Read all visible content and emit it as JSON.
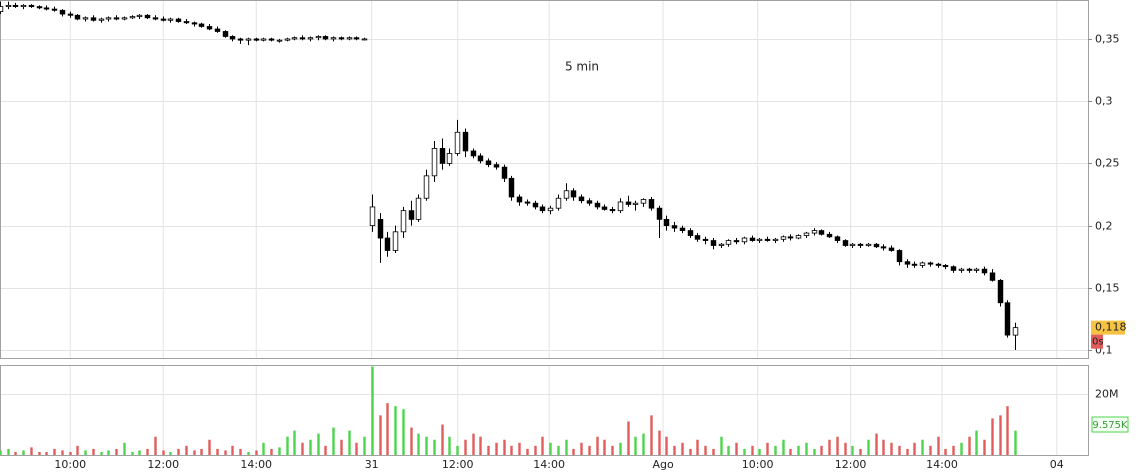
{
  "chart_data": {
    "type": "candlestick",
    "annotation": "5 min",
    "candles": [
      [
        0.372,
        0.38,
        0.37,
        0.376
      ],
      [
        0.376,
        0.38,
        0.374,
        0.377
      ],
      [
        0.377,
        0.379,
        0.375,
        0.376
      ],
      [
        0.376,
        0.378,
        0.374,
        0.377
      ],
      [
        0.377,
        0.378,
        0.375,
        0.376
      ],
      [
        0.376,
        0.377,
        0.374,
        0.375
      ],
      [
        0.375,
        0.377,
        0.373,
        0.374
      ],
      [
        0.374,
        0.376,
        0.372,
        0.373
      ],
      [
        0.373,
        0.374,
        0.368,
        0.37
      ],
      [
        0.37,
        0.372,
        0.367,
        0.369
      ],
      [
        0.369,
        0.37,
        0.365,
        0.366
      ],
      [
        0.366,
        0.368,
        0.364,
        0.367
      ],
      [
        0.367,
        0.369,
        0.364,
        0.365
      ],
      [
        0.365,
        0.367,
        0.363,
        0.366
      ],
      [
        0.366,
        0.368,
        0.364,
        0.367
      ],
      [
        0.367,
        0.369,
        0.365,
        0.366
      ],
      [
        0.366,
        0.368,
        0.365,
        0.367
      ],
      [
        0.367,
        0.369,
        0.366,
        0.368
      ],
      [
        0.368,
        0.37,
        0.366,
        0.369
      ],
      [
        0.369,
        0.37,
        0.366,
        0.367
      ],
      [
        0.367,
        0.369,
        0.365,
        0.366
      ],
      [
        0.366,
        0.368,
        0.364,
        0.365
      ],
      [
        0.365,
        0.367,
        0.363,
        0.366
      ],
      [
        0.366,
        0.367,
        0.363,
        0.364
      ],
      [
        0.364,
        0.366,
        0.362,
        0.363
      ],
      [
        0.363,
        0.364,
        0.36,
        0.362
      ],
      [
        0.362,
        0.363,
        0.359,
        0.36
      ],
      [
        0.36,
        0.362,
        0.357,
        0.358
      ],
      [
        0.358,
        0.36,
        0.355,
        0.356
      ],
      [
        0.356,
        0.357,
        0.351,
        0.352
      ],
      [
        0.352,
        0.353,
        0.348,
        0.35
      ],
      [
        0.35,
        0.351,
        0.346,
        0.349
      ],
      [
        0.349,
        0.351,
        0.345,
        0.35
      ],
      [
        0.35,
        0.351,
        0.348,
        0.349
      ],
      [
        0.349,
        0.351,
        0.348,
        0.35
      ],
      [
        0.35,
        0.351,
        0.348,
        0.349
      ],
      [
        0.349,
        0.35,
        0.347,
        0.349
      ],
      [
        0.349,
        0.351,
        0.348,
        0.35
      ],
      [
        0.35,
        0.352,
        0.349,
        0.351
      ],
      [
        0.351,
        0.353,
        0.349,
        0.35
      ],
      [
        0.35,
        0.352,
        0.348,
        0.351
      ],
      [
        0.351,
        0.353,
        0.349,
        0.352
      ],
      [
        0.352,
        0.353,
        0.349,
        0.35
      ],
      [
        0.35,
        0.352,
        0.348,
        0.351
      ],
      [
        0.351,
        0.352,
        0.349,
        0.35
      ],
      [
        0.35,
        0.352,
        0.349,
        0.351
      ],
      [
        0.351,
        0.352,
        0.349,
        0.35
      ],
      [
        0.35,
        0.351,
        0.349,
        0.35
      ],
      [
        0.2,
        0.225,
        0.195,
        0.215
      ],
      [
        0.205,
        0.21,
        0.17,
        0.19
      ],
      [
        0.19,
        0.195,
        0.175,
        0.18
      ],
      [
        0.18,
        0.2,
        0.178,
        0.195
      ],
      [
        0.195,
        0.215,
        0.19,
        0.212
      ],
      [
        0.212,
        0.22,
        0.2,
        0.205
      ],
      [
        0.205,
        0.225,
        0.203,
        0.222
      ],
      [
        0.222,
        0.245,
        0.22,
        0.24
      ],
      [
        0.24,
        0.268,
        0.235,
        0.262
      ],
      [
        0.262,
        0.27,
        0.245,
        0.25
      ],
      [
        0.25,
        0.262,
        0.248,
        0.258
      ],
      [
        0.258,
        0.285,
        0.256,
        0.275
      ],
      [
        0.275,
        0.278,
        0.255,
        0.26
      ],
      [
        0.26,
        0.262,
        0.254,
        0.256
      ],
      [
        0.256,
        0.258,
        0.25,
        0.252
      ],
      [
        0.252,
        0.254,
        0.247,
        0.249
      ],
      [
        0.249,
        0.251,
        0.245,
        0.247
      ],
      [
        0.247,
        0.249,
        0.235,
        0.238
      ],
      [
        0.238,
        0.24,
        0.22,
        0.223
      ],
      [
        0.223,
        0.225,
        0.216,
        0.219
      ],
      [
        0.219,
        0.221,
        0.216,
        0.218
      ],
      [
        0.218,
        0.22,
        0.213,
        0.215
      ],
      [
        0.215,
        0.217,
        0.21,
        0.212
      ],
      [
        0.212,
        0.216,
        0.209,
        0.214
      ],
      [
        0.214,
        0.225,
        0.212,
        0.222
      ],
      [
        0.222,
        0.234,
        0.22,
        0.228
      ],
      [
        0.228,
        0.23,
        0.22,
        0.223
      ],
      [
        0.223,
        0.225,
        0.218,
        0.22
      ],
      [
        0.22,
        0.222,
        0.216,
        0.218
      ],
      [
        0.218,
        0.22,
        0.213,
        0.215
      ],
      [
        0.215,
        0.217,
        0.212,
        0.213
      ],
      [
        0.213,
        0.215,
        0.21,
        0.212
      ],
      [
        0.212,
        0.222,
        0.21,
        0.219
      ],
      [
        0.219,
        0.224,
        0.215,
        0.217
      ],
      [
        0.217,
        0.22,
        0.212,
        0.218
      ],
      [
        0.218,
        0.222,
        0.215,
        0.221
      ],
      [
        0.221,
        0.223,
        0.212,
        0.214
      ],
      [
        0.214,
        0.216,
        0.19,
        0.205
      ],
      [
        0.205,
        0.208,
        0.196,
        0.2
      ],
      [
        0.2,
        0.203,
        0.195,
        0.198
      ],
      [
        0.198,
        0.2,
        0.194,
        0.196
      ],
      [
        0.196,
        0.198,
        0.19,
        0.192
      ],
      [
        0.192,
        0.194,
        0.187,
        0.189
      ],
      [
        0.189,
        0.191,
        0.185,
        0.188
      ],
      [
        0.188,
        0.19,
        0.181,
        0.184
      ],
      [
        0.184,
        0.186,
        0.182,
        0.185
      ],
      [
        0.185,
        0.189,
        0.183,
        0.188
      ],
      [
        0.188,
        0.19,
        0.185,
        0.187
      ],
      [
        0.187,
        0.191,
        0.185,
        0.19
      ],
      [
        0.19,
        0.192,
        0.187,
        0.188
      ],
      [
        0.188,
        0.19,
        0.186,
        0.189
      ],
      [
        0.189,
        0.191,
        0.187,
        0.188
      ],
      [
        0.188,
        0.19,
        0.186,
        0.189
      ],
      [
        0.189,
        0.192,
        0.187,
        0.191
      ],
      [
        0.191,
        0.193,
        0.188,
        0.19
      ],
      [
        0.19,
        0.193,
        0.189,
        0.192
      ],
      [
        0.192,
        0.195,
        0.19,
        0.194
      ],
      [
        0.194,
        0.198,
        0.192,
        0.196
      ],
      [
        0.196,
        0.197,
        0.192,
        0.193
      ],
      [
        0.193,
        0.195,
        0.19,
        0.191
      ],
      [
        0.191,
        0.192,
        0.186,
        0.188
      ],
      [
        0.188,
        0.189,
        0.183,
        0.184
      ],
      [
        0.184,
        0.186,
        0.182,
        0.185
      ],
      [
        0.185,
        0.186,
        0.182,
        0.184
      ],
      [
        0.184,
        0.186,
        0.183,
        0.185
      ],
      [
        0.185,
        0.186,
        0.182,
        0.183
      ],
      [
        0.183,
        0.185,
        0.18,
        0.182
      ],
      [
        0.182,
        0.184,
        0.179,
        0.18
      ],
      [
        0.18,
        0.181,
        0.168,
        0.171
      ],
      [
        0.171,
        0.173,
        0.166,
        0.169
      ],
      [
        0.169,
        0.171,
        0.166,
        0.168
      ],
      [
        0.168,
        0.171,
        0.166,
        0.17
      ],
      [
        0.17,
        0.171,
        0.167,
        0.169
      ],
      [
        0.169,
        0.17,
        0.166,
        0.168
      ],
      [
        0.168,
        0.169,
        0.165,
        0.167
      ],
      [
        0.167,
        0.168,
        0.162,
        0.164
      ],
      [
        0.164,
        0.166,
        0.162,
        0.165
      ],
      [
        0.165,
        0.166,
        0.162,
        0.164
      ],
      [
        0.164,
        0.166,
        0.162,
        0.165
      ],
      [
        0.165,
        0.167,
        0.16,
        0.162
      ],
      [
        0.162,
        0.165,
        0.155,
        0.156
      ],
      [
        0.156,
        0.157,
        0.135,
        0.138
      ],
      [
        0.138,
        0.14,
        0.11,
        0.112
      ],
      [
        0.112,
        0.122,
        0.1,
        0.118
      ]
    ],
    "volumes": [
      1500000,
      2000000,
      1000000,
      1500000,
      2500000,
      1000000,
      1000000,
      2000000,
      1500000,
      1000000,
      3000000,
      1500000,
      2000000,
      1000000,
      1500000,
      2000000,
      4000000,
      1000000,
      1500000,
      2000000,
      6000000,
      1500000,
      1000000,
      2000000,
      3000000,
      1500000,
      2000000,
      5000000,
      2000000,
      1500000,
      3000000,
      2000000,
      1000000,
      1500000,
      4000000,
      2000000,
      2500000,
      6000000,
      8000000,
      4000000,
      5000000,
      7000000,
      3000000,
      9000000,
      5000000,
      8000000,
      4000000,
      6000000,
      29000000,
      13000000,
      17000000,
      16000000,
      15000000,
      9000000,
      7000000,
      6000000,
      5000000,
      10000000,
      6000000,
      3000000,
      5000000,
      7000000,
      6000000,
      3000000,
      4000000,
      5000000,
      3000000,
      4000000,
      2000000,
      3000000,
      6000000,
      4000000,
      3000000,
      5000000,
      2000000,
      4000000,
      3000000,
      6000000,
      5000000,
      3000000,
      4000000,
      11000000,
      6000000,
      7000000,
      13000000,
      8000000,
      6000000,
      3000000,
      4000000,
      2000000,
      5000000,
      3000000,
      2000000,
      6000000,
      3000000,
      4000000,
      2000000,
      3000000,
      2000000,
      4000000,
      3000000,
      5000000,
      2000000,
      3000000,
      4000000,
      2000000,
      3000000,
      5000000,
      6000000,
      4000000,
      3000000,
      2000000,
      5000000,
      7000000,
      5000000,
      4000000,
      3000000,
      2000000,
      4000000,
      5000000,
      3000000,
      6000000,
      2000000,
      3000000,
      4000000,
      6000000,
      8000000,
      5000000,
      12000000,
      13000000,
      16000000,
      8000000
    ],
    "xlim": [
      0,
      140.4
    ],
    "xticks": [
      {
        "value": 9,
        "label": "10:00"
      },
      {
        "value": 21,
        "label": "12:00"
      },
      {
        "value": 33,
        "label": "14:00"
      },
      {
        "value": 47.9,
        "label": "31"
      },
      {
        "value": 59,
        "label": "12:00"
      },
      {
        "value": 70.8,
        "label": "14:00"
      },
      {
        "value": 85.5,
        "label": "Ago"
      },
      {
        "value": 97.7,
        "label": "10:00"
      },
      {
        "value": 109.7,
        "label": "12:00"
      },
      {
        "value": 121.5,
        "label": "14:00"
      },
      {
        "value": 136.3,
        "label": "04"
      }
    ],
    "ylim": [
      0.0936,
      0.3813
    ],
    "yticks": [
      {
        "value": 0.1,
        "label": "0,1"
      },
      {
        "value": 0.15,
        "label": "0,15"
      },
      {
        "value": 0.2,
        "label": "0,2"
      },
      {
        "value": 0.25,
        "label": "0,25"
      },
      {
        "value": 0.3,
        "label": "0,3"
      },
      {
        "value": 0.35,
        "label": "0,35"
      }
    ],
    "volume_ylim": [
      0,
      29500000
    ],
    "volume_yticks": [
      {
        "value": 20000000,
        "label": "20M"
      }
    ],
    "last_price_label": "0,118",
    "countdown_label": "0s",
    "last_volume_label": "9.575K",
    "up_volume_color": "#4cd54c",
    "down_volume_color": "#e25c5c",
    "grid": true
  }
}
